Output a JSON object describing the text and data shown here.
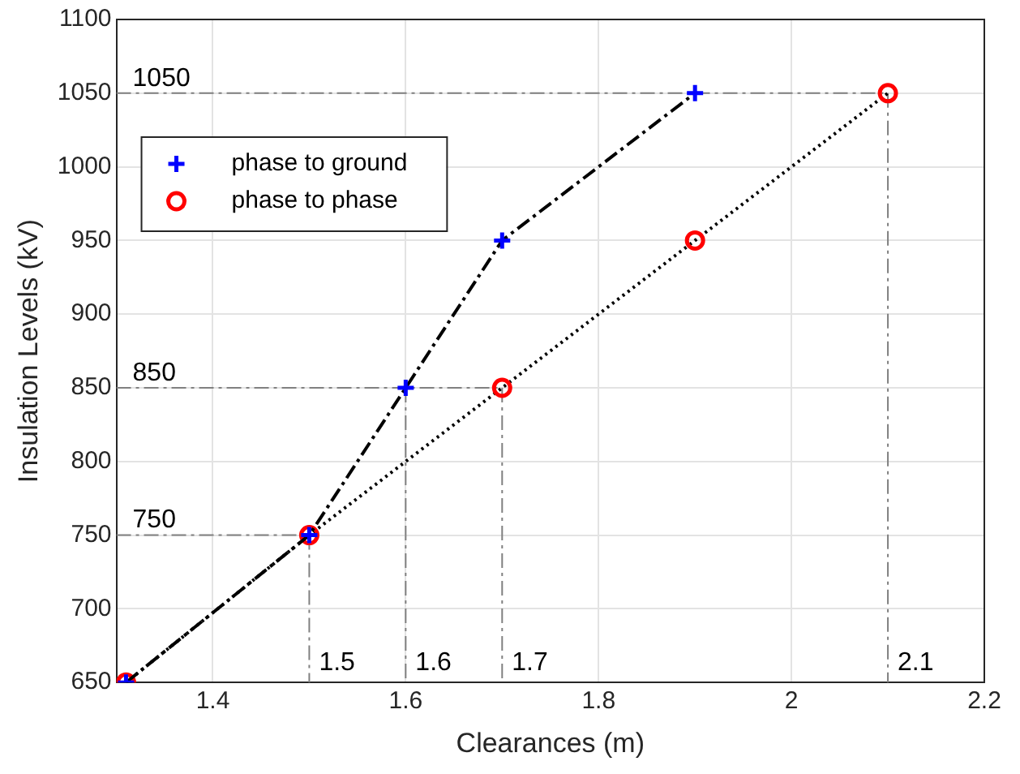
{
  "chart_data": {
    "type": "line",
    "xlabel": "Clearances (m)",
    "ylabel": "Insulation Levels (kV)",
    "xlim": [
      1.3,
      2.2
    ],
    "xticks": [
      1.4,
      1.6,
      1.8,
      2,
      2.2
    ],
    "ylim": [
      650,
      1100
    ],
    "yticks": [
      650,
      700,
      750,
      800,
      850,
      900,
      950,
      1000,
      1050,
      1100
    ],
    "grid": true,
    "legend": "top left",
    "series": [
      {
        "name": "phase to ground",
        "color": "#0000ff",
        "marker": "cross",
        "line_style": "dashed",
        "x": [
          1.31,
          1.5,
          1.6,
          1.7,
          1.9
        ],
        "values": [
          650,
          750,
          850,
          950,
          1050
        ]
      },
      {
        "name": "phase to phase",
        "color": "#ff0000",
        "marker": "circle",
        "line_style": "dotted",
        "x": [
          1.31,
          1.5,
          1.7,
          1.9,
          2.1
        ],
        "values": [
          650,
          750,
          850,
          950,
          1050
        ]
      },
      {
        "type": "line",
        "color": "#808080",
        "marker": "none",
        "line_style": "dashed",
        "x": [
          1.3,
          2.1
        ],
        "values": [
          1050,
          1050
        ]
      },
      {
        "type": "line",
        "color": "#808080",
        "marker": "none",
        "line_style": "dashed",
        "x": [
          1.3,
          1.7
        ],
        "values": [
          850,
          850
        ]
      },
      {
        "type": "line",
        "color": "#808080",
        "marker": "none",
        "line_style": "dashed",
        "x": [
          1.3,
          1.5
        ],
        "values": [
          750,
          750
        ]
      },
      {
        "type": "line",
        "color": "#808080",
        "marker": "none",
        "line_style": "dashed",
        "x": [
          1.5,
          1.5
        ],
        "values": [
          750,
          650
        ]
      },
      {
        "type": "line",
        "color": "#808080",
        "marker": "none",
        "line_style": "dashed",
        "x": [
          1.6,
          1.6
        ],
        "values": [
          850,
          650
        ]
      },
      {
        "type": "line",
        "color": "#808080",
        "marker": "none",
        "line_style": "dashed",
        "x": [
          1.7,
          1.7
        ],
        "values": [
          850,
          650
        ]
      },
      {
        "type": "line",
        "color": "#808080",
        "marker": "none",
        "line_style": "dashed",
        "x": [
          2.1,
          2.1
        ],
        "values": [
          1050,
          650
        ]
      }
    ],
    "annotations": [
      {
        "text": "1050",
        "x": 1.3,
        "y": 1050
      },
      {
        "text": "850",
        "x": 1.3,
        "y": 850
      },
      {
        "text": "750",
        "x": 1.3,
        "y": 750
      },
      {
        "text": "1.5",
        "x": 1.5,
        "y": 650
      },
      {
        "text": "1.6",
        "x": 1.6,
        "y": 650
      },
      {
        "text": "1.7",
        "x": 1.7,
        "y": 650
      },
      {
        "text": "2.1",
        "x": 2.1,
        "y": 650
      }
    ]
  }
}
